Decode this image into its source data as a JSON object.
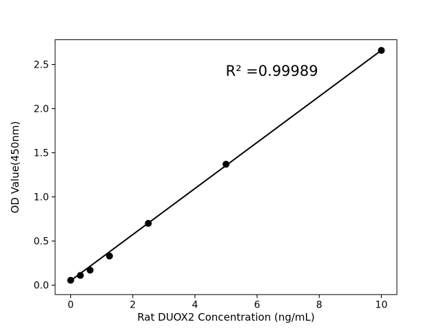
{
  "figure": {
    "background": "#ffffff"
  },
  "chart_data": {
    "type": "scatter",
    "title": "",
    "xlabel": "Rat DUOX2 Concentration (ng/mL)",
    "ylabel": "OD Value(450nm)",
    "r_squared_label": "R² =0.99989",
    "x": [
      0,
      0.3125,
      0.625,
      1.25,
      2.5,
      5,
      10
    ],
    "y": [
      0.055,
      0.11,
      0.17,
      0.33,
      0.7,
      1.37,
      2.66
    ],
    "fit_line": {
      "slope": 0.261,
      "intercept": 0.051,
      "x_start": 0,
      "x_end": 10
    },
    "xlim": [
      -0.5,
      10.5
    ],
    "ylim": [
      -0.107,
      2.781
    ],
    "xticks": [
      0,
      2,
      4,
      6,
      8,
      10
    ],
    "xtick_labels": [
      "0",
      "2",
      "4",
      "6",
      "8",
      "10"
    ],
    "yticks": [
      0.0,
      0.5,
      1.0,
      1.5,
      2.0,
      2.5
    ],
    "ytick_labels": [
      "0.0",
      "0.5",
      "1.0",
      "1.5",
      "2.0",
      "2.5"
    ],
    "grid": false,
    "legend": null,
    "line_color": "#000000",
    "marker_color": "#000000",
    "axis_color": "#000000"
  }
}
